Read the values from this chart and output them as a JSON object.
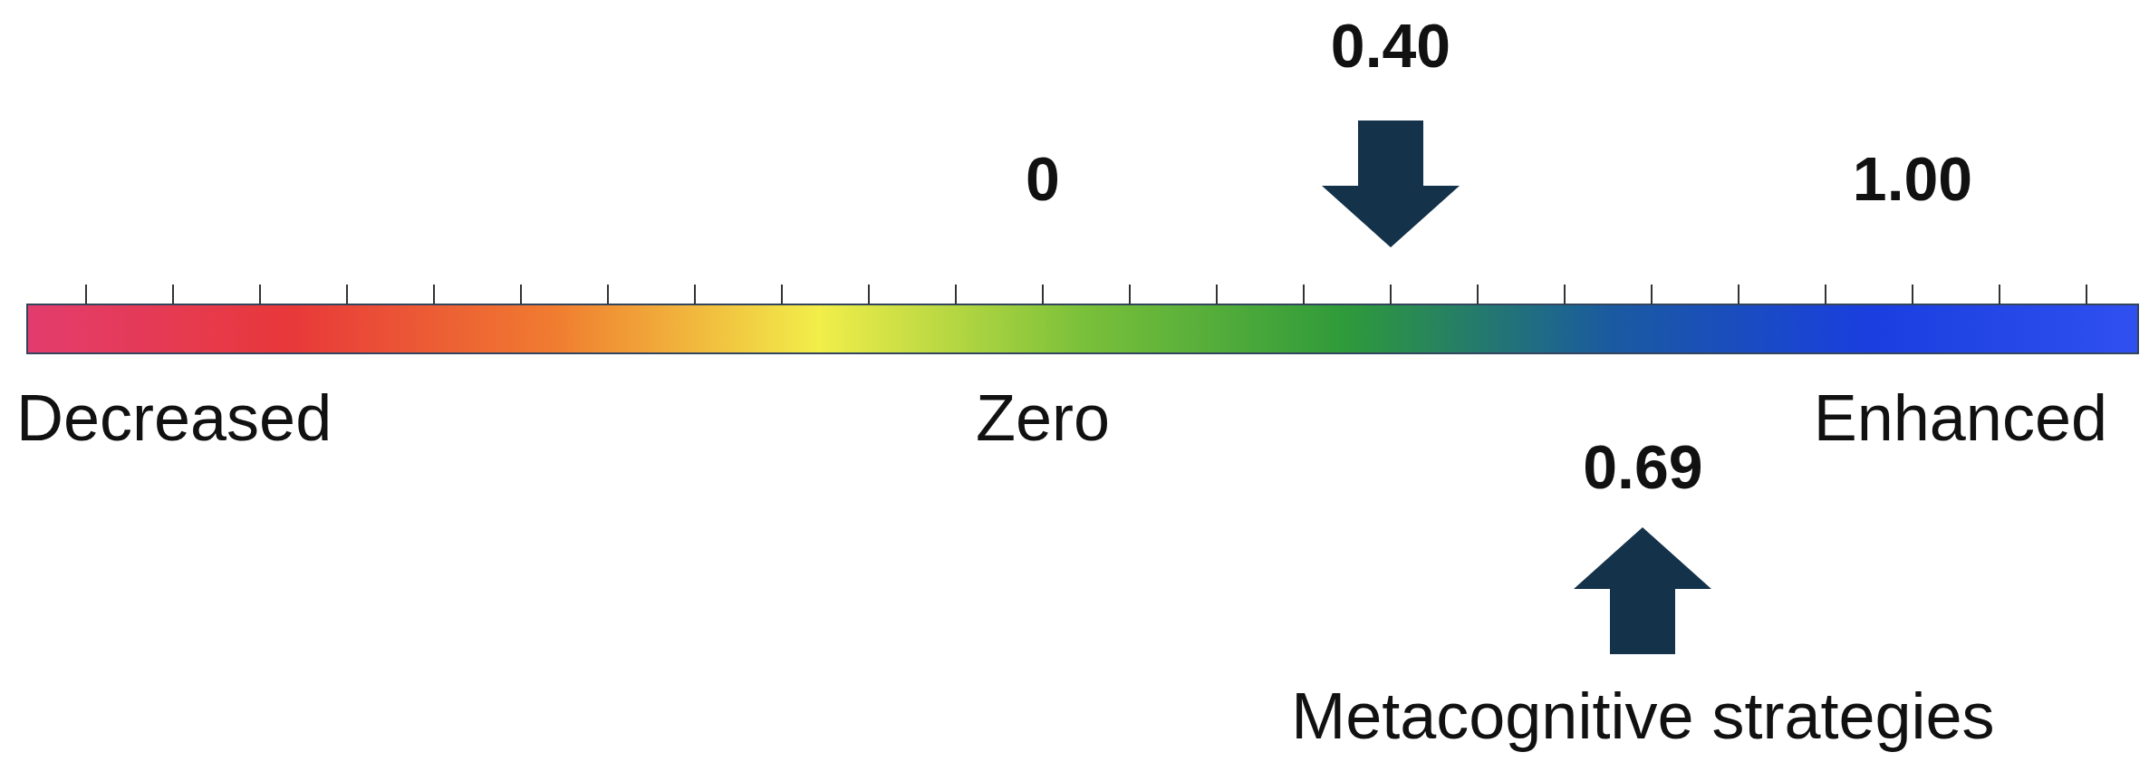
{
  "chart_data": {
    "type": "other",
    "categories": [
      null,
      "Metacognitive strategies"
    ],
    "values": [
      0.4,
      0.69
    ],
    "value_labels": [
      "0.40",
      "0.69"
    ],
    "annotations": [
      "0",
      "1.00",
      "Decreased",
      "Zero",
      "Enhanced"
    ]
  }
}
